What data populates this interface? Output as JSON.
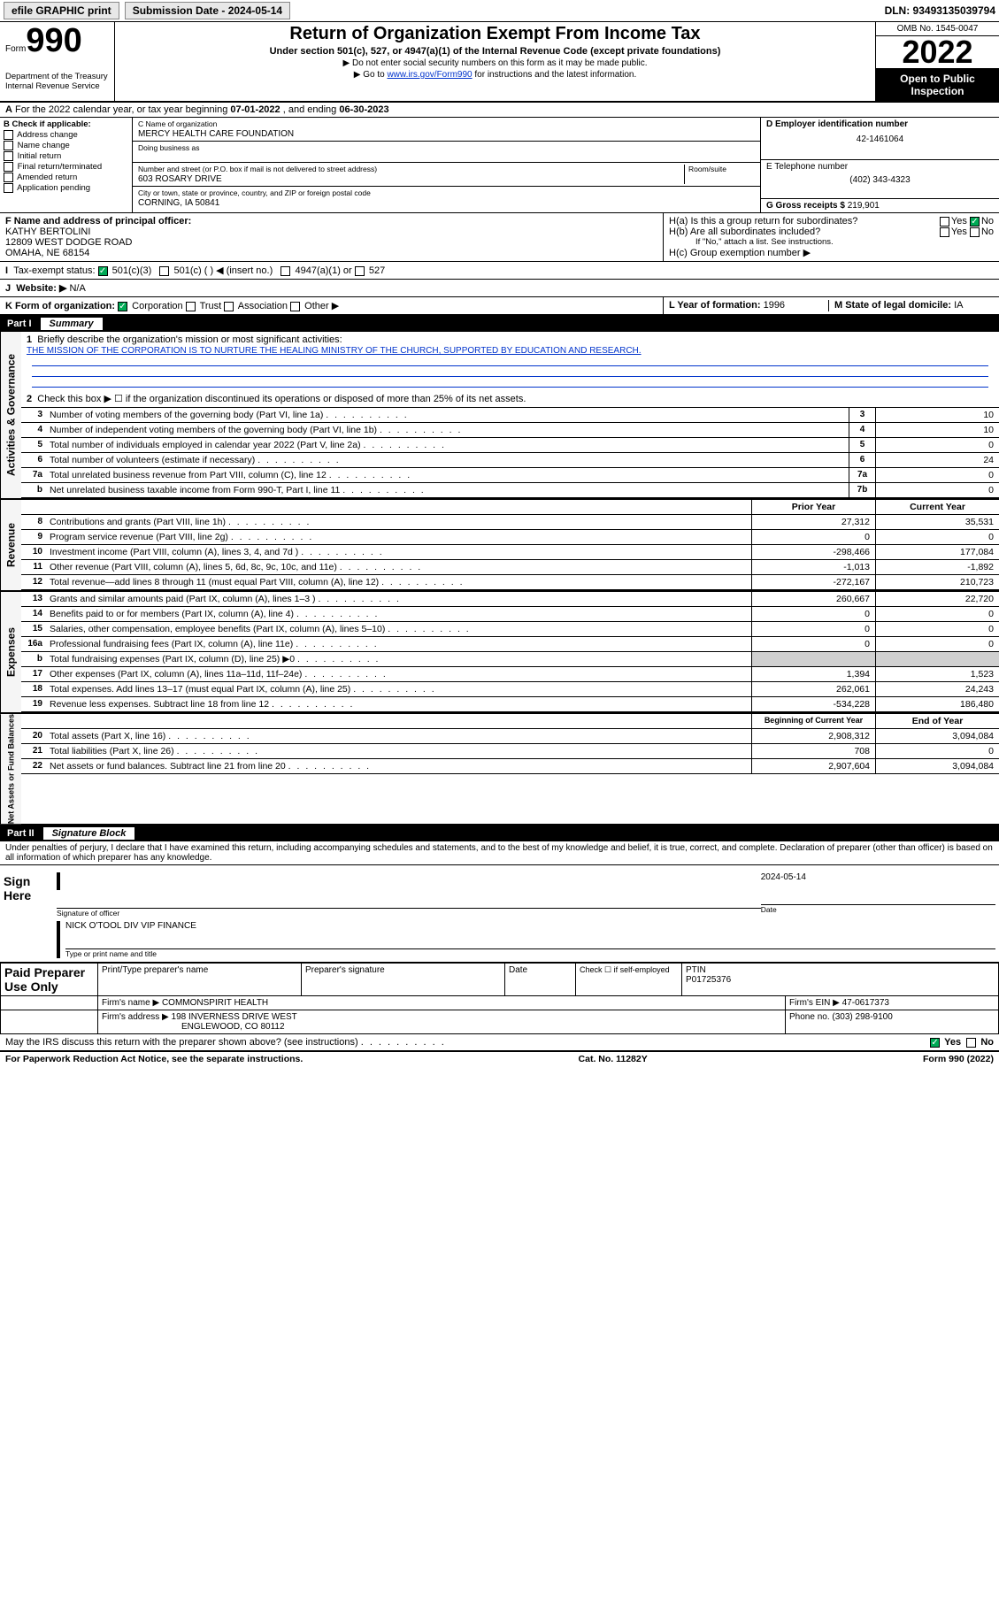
{
  "topbar": {
    "efile": "efile GRAPHIC print",
    "submission_label": "Submission Date - 2024-05-14",
    "dln": "DLN: 93493135039794"
  },
  "header": {
    "form_word": "Form",
    "form_num": "990",
    "dept": "Department of the Treasury\nInternal Revenue Service",
    "title": "Return of Organization Exempt From Income Tax",
    "sub1": "Under section 501(c), 527, or 4947(a)(1) of the Internal Revenue Code (except private foundations)",
    "sub2": "▶ Do not enter social security numbers on this form as it may be made public.",
    "sub3_pre": "▶ Go to ",
    "sub3_link": "www.irs.gov/Form990",
    "sub3_post": " for instructions and the latest information.",
    "omb": "OMB No. 1545-0047",
    "year": "2022",
    "open": "Open to Public Inspection"
  },
  "lineA": {
    "text": "For the 2022 calendar year, or tax year beginning ",
    "begin": "07-01-2022",
    "mid": " , and ending ",
    "end": "06-30-2023"
  },
  "boxB": {
    "title": "B Check if applicable:",
    "opts": [
      "Address change",
      "Name change",
      "Initial return",
      "Final return/terminated",
      "Amended return",
      "Application pending"
    ]
  },
  "boxC": {
    "name_lbl": "C Name of organization",
    "name": "MERCY HEALTH CARE FOUNDATION",
    "dba_lbl": "Doing business as",
    "addr_lbl": "Number and street (or P.O. box if mail is not delivered to street address)",
    "room_lbl": "Room/suite",
    "addr": "603 ROSARY DRIVE",
    "city_lbl": "City or town, state or province, country, and ZIP or foreign postal code",
    "city": "CORNING, IA  50841"
  },
  "boxD": {
    "lbl": "D Employer identification number",
    "val": "42-1461064"
  },
  "boxE": {
    "lbl": "E Telephone number",
    "val": "(402) 343-4323"
  },
  "boxG": {
    "lbl": "G Gross receipts $",
    "val": "219,901"
  },
  "boxF": {
    "lbl": "F Name and address of principal officer:",
    "name": "KATHY BERTOLINI",
    "addr1": "12809 WEST DODGE ROAD",
    "addr2": "OMAHA, NE  68154"
  },
  "boxH": {
    "a": "H(a)  Is this a group return for subordinates?",
    "b": "H(b)  Are all subordinates included?",
    "note": "If \"No,\" attach a list. See instructions.",
    "c": "H(c)  Group exemption number ▶"
  },
  "lineI": {
    "lbl": "Tax-exempt status:",
    "c3": "501(c)(3)",
    "c": "501(c) (    ) ◀ (insert no.)",
    "a1": "4947(a)(1) or",
    "s527": "527"
  },
  "lineJ": {
    "lbl": "Website: ▶",
    "val": "N/A"
  },
  "lineK": {
    "lbl": "K Form of organization:",
    "opts": [
      "Corporation",
      "Trust",
      "Association",
      "Other ▶"
    ]
  },
  "lineL": {
    "lbl": "L Year of formation:",
    "val": "1996"
  },
  "lineM": {
    "lbl": "M State of legal domicile:",
    "val": "IA"
  },
  "part1_title": "Part I",
  "part1_sub": "Summary",
  "summary": {
    "q1_lbl": "Briefly describe the organization's mission or most significant activities:",
    "q1_val": "THE MISSION OF THE CORPORATION IS TO NURTURE THE HEALING MINISTRY OF THE CHURCH, SUPPORTED BY EDUCATION AND RESEARCH.",
    "q2": "Check this box ▶ ☐  if the organization discontinued its operations or disposed of more than 25% of its net assets.",
    "rows_gov": [
      {
        "n": "3",
        "t": "Number of voting members of the governing body (Part VI, line 1a)",
        "box": "3",
        "v": "10"
      },
      {
        "n": "4",
        "t": "Number of independent voting members of the governing body (Part VI, line 1b)",
        "box": "4",
        "v": "10"
      },
      {
        "n": "5",
        "t": "Total number of individuals employed in calendar year 2022 (Part V, line 2a)",
        "box": "5",
        "v": "0"
      },
      {
        "n": "6",
        "t": "Total number of volunteers (estimate if necessary)",
        "box": "6",
        "v": "24"
      },
      {
        "n": "7a",
        "t": "Total unrelated business revenue from Part VIII, column (C), line 12",
        "box": "7a",
        "v": "0"
      },
      {
        "n": "b",
        "t": "Net unrelated business taxable income from Form 990-T, Part I, line 11",
        "box": "7b",
        "v": "0"
      }
    ],
    "py_hdr": "Prior Year",
    "cy_hdr": "Current Year",
    "rows_rev": [
      {
        "n": "8",
        "t": "Contributions and grants (Part VIII, line 1h)",
        "py": "27,312",
        "cy": "35,531"
      },
      {
        "n": "9",
        "t": "Program service revenue (Part VIII, line 2g)",
        "py": "0",
        "cy": "0"
      },
      {
        "n": "10",
        "t": "Investment income (Part VIII, column (A), lines 3, 4, and 7d )",
        "py": "-298,466",
        "cy": "177,084"
      },
      {
        "n": "11",
        "t": "Other revenue (Part VIII, column (A), lines 5, 6d, 8c, 9c, 10c, and 11e)",
        "py": "-1,013",
        "cy": "-1,892"
      },
      {
        "n": "12",
        "t": "Total revenue—add lines 8 through 11 (must equal Part VIII, column (A), line 12)",
        "py": "-272,167",
        "cy": "210,723"
      }
    ],
    "rows_exp": [
      {
        "n": "13",
        "t": "Grants and similar amounts paid (Part IX, column (A), lines 1–3 )",
        "py": "260,667",
        "cy": "22,720"
      },
      {
        "n": "14",
        "t": "Benefits paid to or for members (Part IX, column (A), line 4)",
        "py": "0",
        "cy": "0"
      },
      {
        "n": "15",
        "t": "Salaries, other compensation, employee benefits (Part IX, column (A), lines 5–10)",
        "py": "0",
        "cy": "0"
      },
      {
        "n": "16a",
        "t": "Professional fundraising fees (Part IX, column (A), line 11e)",
        "py": "0",
        "cy": "0"
      },
      {
        "n": "b",
        "t": "Total fundraising expenses (Part IX, column (D), line 25) ▶0",
        "py": "",
        "cy": "",
        "grey": true
      },
      {
        "n": "17",
        "t": "Other expenses (Part IX, column (A), lines 11a–11d, 11f–24e)",
        "py": "1,394",
        "cy": "1,523"
      },
      {
        "n": "18",
        "t": "Total expenses. Add lines 13–17 (must equal Part IX, column (A), line 25)",
        "py": "262,061",
        "cy": "24,243"
      },
      {
        "n": "19",
        "t": "Revenue less expenses. Subtract line 18 from line 12",
        "py": "-534,228",
        "cy": "186,480"
      }
    ],
    "boy_hdr": "Beginning of Current Year",
    "eoy_hdr": "End of Year",
    "rows_net": [
      {
        "n": "20",
        "t": "Total assets (Part X, line 16)",
        "py": "2,908,312",
        "cy": "3,094,084"
      },
      {
        "n": "21",
        "t": "Total liabilities (Part X, line 26)",
        "py": "708",
        "cy": "0"
      },
      {
        "n": "22",
        "t": "Net assets or fund balances. Subtract line 21 from line 20",
        "py": "2,907,604",
        "cy": "3,094,084"
      }
    ]
  },
  "side_labels": {
    "gov": "Activities & Governance",
    "rev": "Revenue",
    "exp": "Expenses",
    "net": "Net Assets or Fund Balances"
  },
  "part2_title": "Part II",
  "part2_sub": "Signature Block",
  "penalties": "Under penalties of perjury, I declare that I have examined this return, including accompanying schedules and statements, and to the best of my knowledge and belief, it is true, correct, and complete. Declaration of preparer (other than officer) is based on all information of which preparer has any knowledge.",
  "sign": {
    "here": "Sign Here",
    "date": "2024-05-14",
    "sig_lbl": "Signature of officer",
    "date_lbl": "Date",
    "name": "NICK O'TOOL  DIV VIP FINANCE",
    "name_lbl": "Type or print name and title"
  },
  "paid": {
    "title": "Paid Preparer Use Only",
    "h1": "Print/Type preparer's name",
    "h2": "Preparer's signature",
    "h3": "Date",
    "h4_a": "Check ☐ if self-employed",
    "h4_b": "PTIN",
    "ptin": "P01725376",
    "firm_lbl": "Firm's name    ▶",
    "firm": "COMMONSPIRIT HEALTH",
    "ein_lbl": "Firm's EIN ▶",
    "ein": "47-0617373",
    "addr_lbl": "Firm's address ▶",
    "addr1": "198 INVERNESS DRIVE WEST",
    "addr2": "ENGLEWOOD, CO  80112",
    "phone_lbl": "Phone no.",
    "phone": "(303) 298-9100"
  },
  "may_discuss": "May the IRS discuss this return with the preparer shown above? (see instructions)",
  "footer": {
    "pra": "For Paperwork Reduction Act Notice, see the separate instructions.",
    "cat": "Cat. No. 11282Y",
    "form": "Form 990 (2022)"
  },
  "yes": "Yes",
  "no": "No"
}
